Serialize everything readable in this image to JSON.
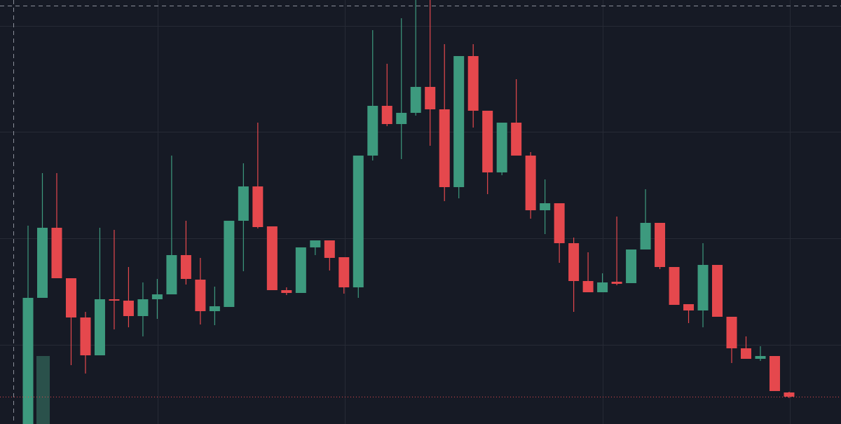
{
  "chart_data": {
    "type": "candlestick",
    "ylim": [
      0,
      605
    ],
    "up_color": "#3d9a7e",
    "down_color": "#e5484d",
    "open": [
      0,
      180,
      280,
      208,
      152,
      98,
      178,
      176,
      154,
      178,
      185,
      241,
      206,
      161,
      167,
      290,
      339,
      282,
      191,
      187,
      252,
      262,
      238,
      195,
      383,
      454,
      428,
      444,
      481,
      449,
      338,
      525,
      447,
      359,
      430,
      383,
      305,
      315,
      258,
      204,
      188,
      203,
      201,
      249,
      287,
      224,
      171,
      162,
      227,
      153,
      108,
      93,
      97,
      45
    ],
    "high": [
      283,
      358,
      358,
      208,
      160,
      280,
      277,
      224,
      202,
      207,
      383,
      290,
      237,
      196,
      290,
      372,
      430,
      282,
      195,
      252,
      262,
      262,
      238,
      383,
      562,
      514,
      579,
      605,
      605,
      542,
      525,
      542,
      447,
      430,
      492,
      388,
      349,
      315,
      266,
      245,
      215,
      296,
      249,
      335,
      287,
      224,
      171,
      258,
      227,
      153,
      125,
      111,
      97,
      46
    ],
    "low": [
      0,
      180,
      208,
      84,
      72,
      98,
      135,
      138,
      125,
      150,
      185,
      199,
      142,
      141,
      167,
      218,
      279,
      191,
      184,
      187,
      241,
      219,
      186,
      180,
      376,
      425,
      378,
      440,
      397,
      318,
      322,
      423,
      328,
      355,
      383,
      293,
      271,
      230,
      160,
      188,
      188,
      198,
      201,
      249,
      221,
      170,
      144,
      138,
      153,
      87,
      93,
      90,
      47,
      37
    ],
    "close": [
      180,
      280,
      208,
      152,
      98,
      178,
      176,
      154,
      178,
      185,
      241,
      207,
      161,
      168,
      290,
      339,
      281,
      191,
      187,
      252,
      262,
      237,
      195,
      383,
      454,
      428,
      444,
      481,
      449,
      338,
      525,
      447,
      359,
      430,
      383,
      305,
      315,
      258,
      204,
      188,
      202,
      200,
      249,
      287,
      224,
      170,
      162,
      227,
      153,
      108,
      93,
      97,
      47,
      39
    ]
  }
}
